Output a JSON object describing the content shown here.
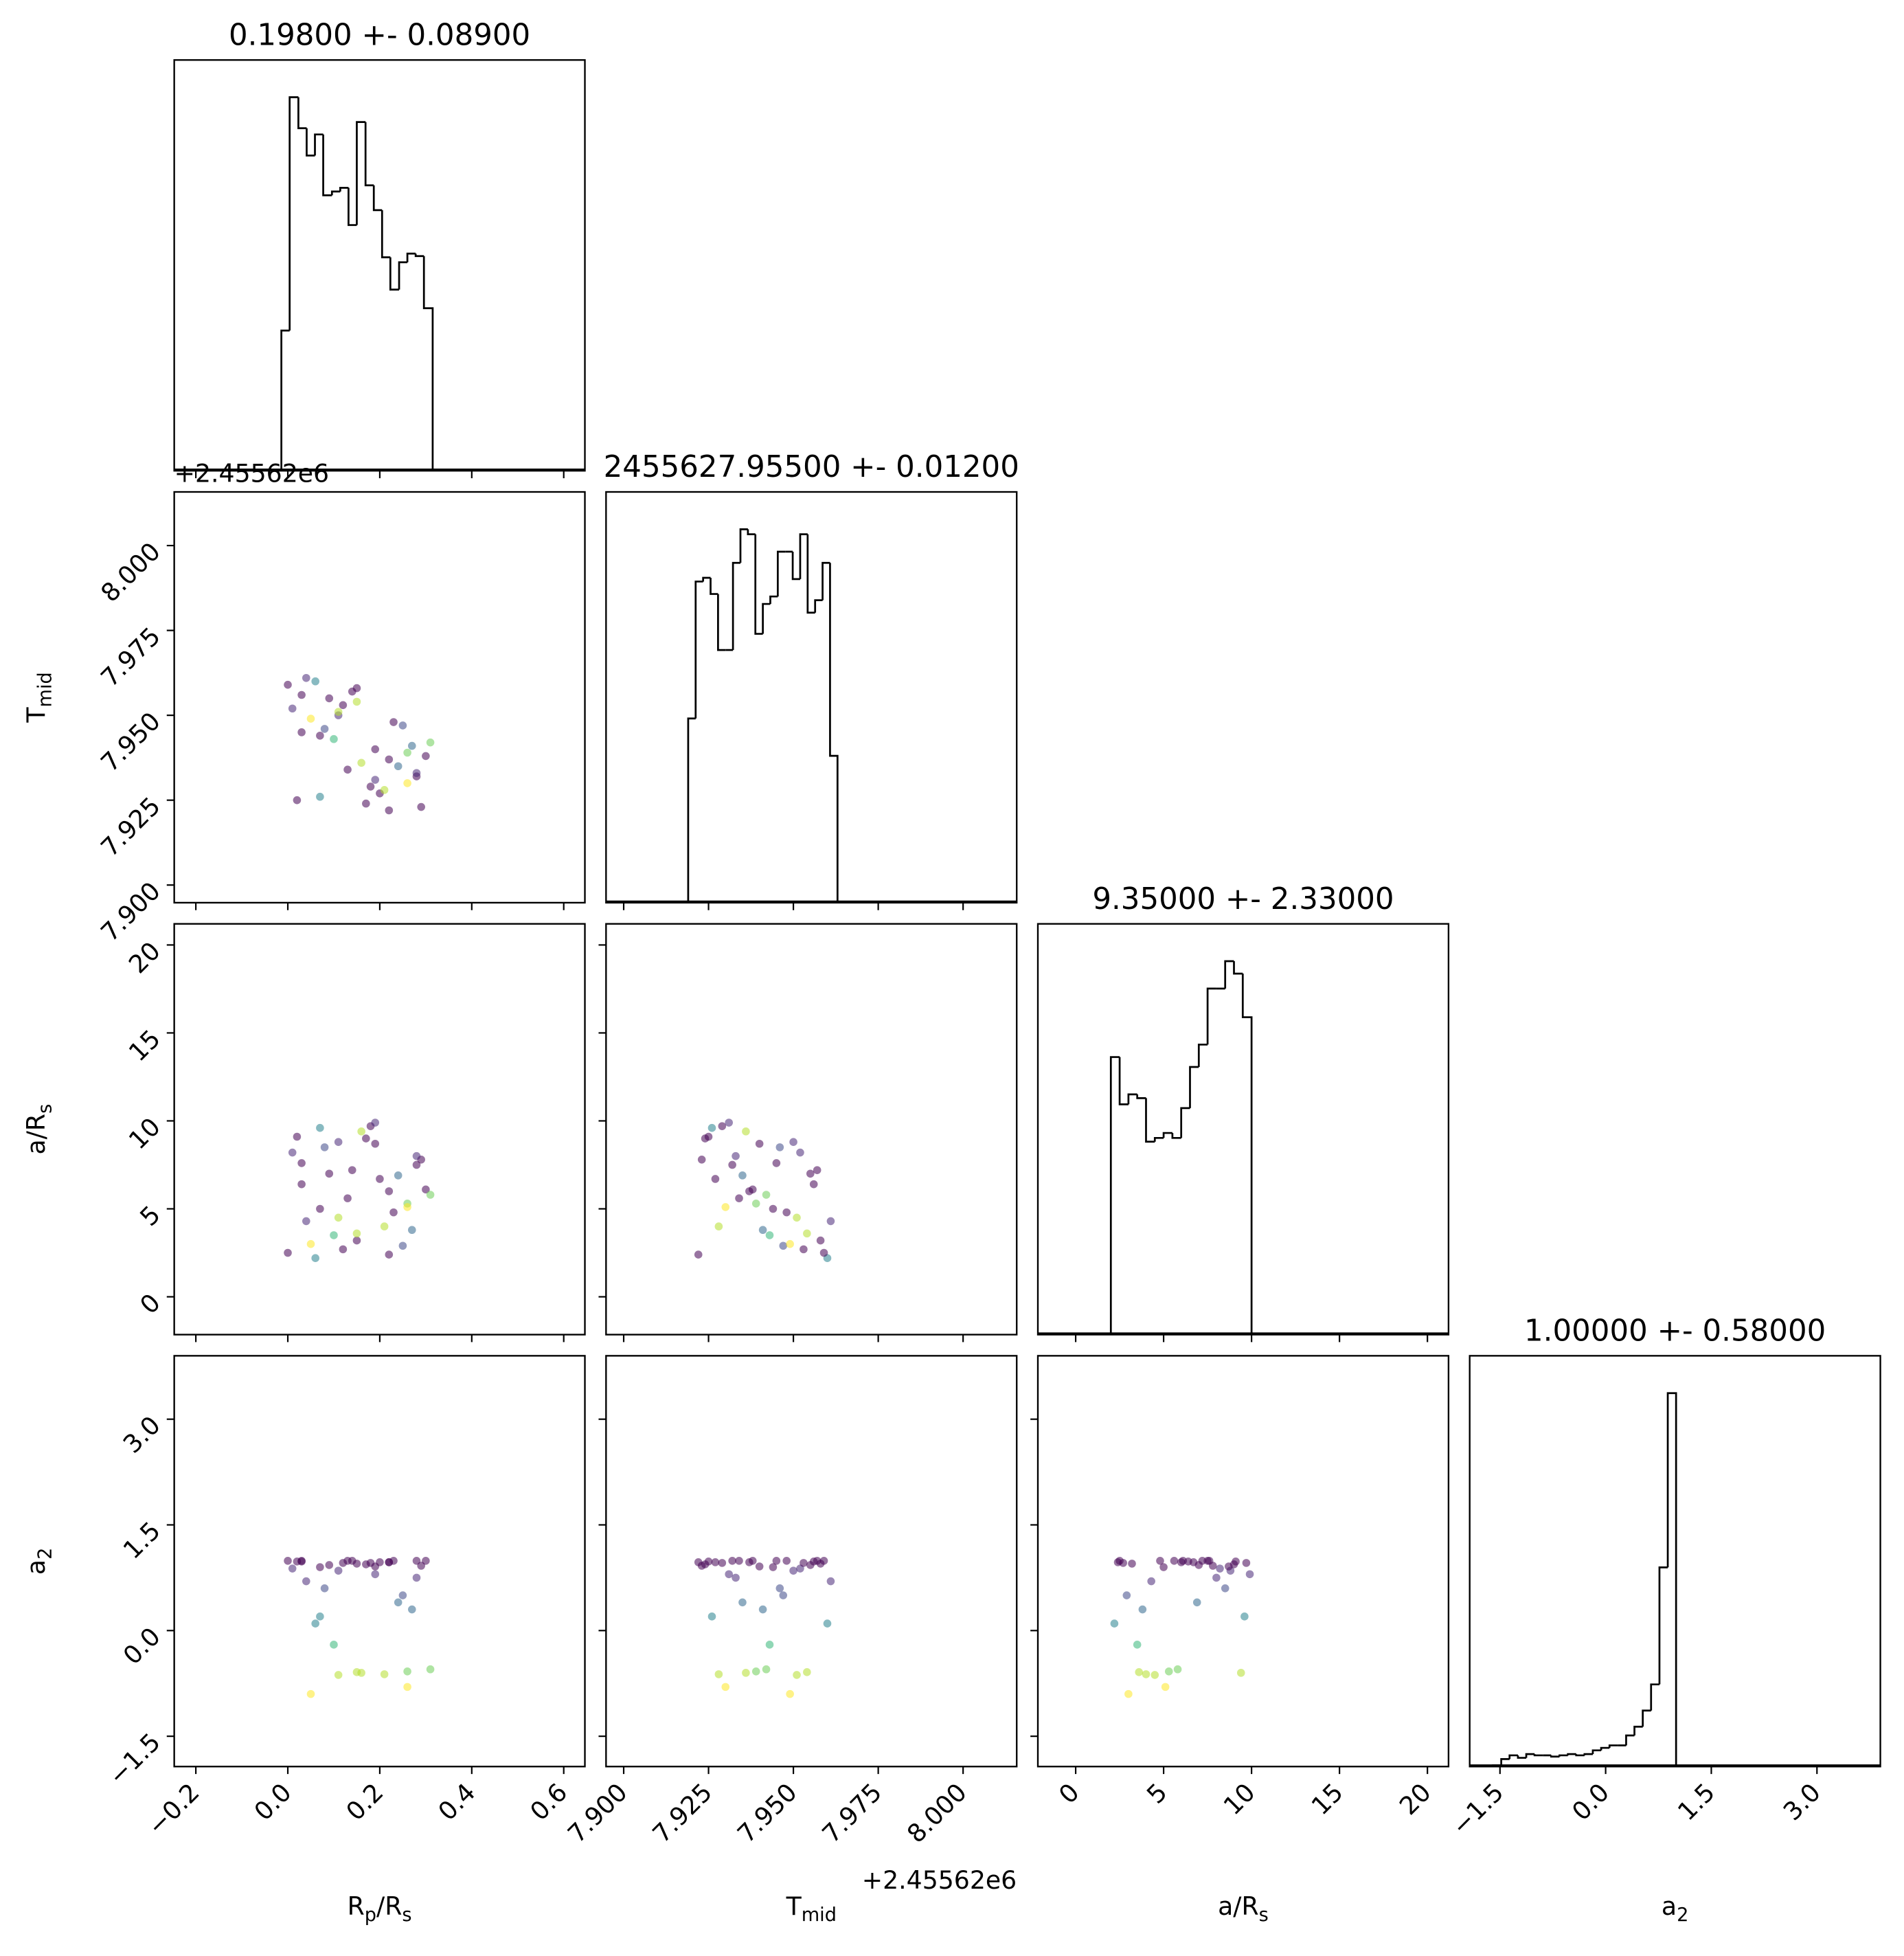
{
  "chart_data": {
    "type": "corner",
    "colormap": "viridis",
    "color_by": 3,
    "params": [
      {
        "label_parts": [
          "R",
          "p",
          "/R",
          "s"
        ],
        "title": "0.19800 +- 0.08900",
        "lim": [
          -0.247,
          0.646
        ],
        "ticks": [
          {
            "value": -0.2,
            "label": "−0.2"
          },
          {
            "value": 0,
            "label": "0.0"
          },
          0.2,
          0.4,
          0.6
        ],
        "hist_bins": [
          -0.014,
          0.004,
          0.023,
          0.041,
          0.059,
          0.077,
          0.096,
          0.114,
          0.132,
          0.15,
          0.169,
          0.187,
          0.205,
          0.223,
          0.242,
          0.26,
          0.278,
          0.296,
          0.315
        ],
        "hist_counts": [
          113,
          301,
          276,
          254,
          271,
          222,
          225,
          228,
          198,
          281,
          230,
          210,
          172,
          146,
          168,
          175,
          173,
          131
        ],
        "hist_ylim": [
          0,
          331
        ],
        "samples": [
          0.02,
          0.15,
          0.28,
          0.07,
          0.22,
          0.11,
          0.3,
          0.04,
          0.18,
          0.25,
          0.09,
          0.13,
          0.27,
          0.01,
          0.2,
          0.06,
          0.16,
          0.23,
          0.29,
          0.1,
          0.03,
          0.19,
          0.26,
          0.12,
          0.08,
          0.21,
          0.14,
          0.24,
          0.05,
          0.17,
          0.31,
          0.0,
          0.28,
          0.11,
          0.22,
          0.07,
          0.15,
          0.03,
          0.26,
          0.19
        ]
      },
      {
        "label_parts": [
          "T",
          "mid"
        ],
        "title": "2455627.95500 +- 0.01200",
        "offset_label": "+2.45562e6",
        "lim": [
          7.8948,
          8.0158
        ],
        "ticks": [
          {
            "value": 7.9,
            "label": "7.900"
          },
          7.925,
          {
            "value": 7.95,
            "label": "7.950"
          },
          7.975,
          {
            "value": 8,
            "label": "8.000"
          }
        ],
        "hist_bins": [
          7.919,
          7.9212,
          7.9234,
          7.9256,
          7.9278,
          7.93,
          7.9322,
          7.9344,
          7.9366,
          7.9388,
          7.941,
          7.9432,
          7.9454,
          7.9476,
          7.9498,
          7.952,
          7.9542,
          7.9564,
          7.9586,
          7.9608,
          7.963
        ],
        "hist_counts": [
          148,
          258,
          261,
          248,
          203,
          203,
          273,
          300,
          296,
          216,
          240,
          246,
          282,
          282,
          260,
          296,
          233,
          243,
          273,
          118
        ],
        "hist_ylim": [
          0,
          330
        ],
        "samples": [
          7.925,
          7.958,
          7.932,
          7.944,
          7.922,
          7.95,
          7.938,
          7.961,
          7.929,
          7.947,
          7.955,
          7.934,
          7.941,
          7.952,
          7.927,
          7.96,
          7.936,
          7.948,
          7.923,
          7.943,
          7.956,
          7.931,
          7.939,
          7.953,
          7.946,
          7.928,
          7.957,
          7.935,
          7.949,
          7.924,
          7.942,
          7.959,
          7.933,
          7.951,
          7.937,
          7.926,
          7.954,
          7.945,
          7.93,
          7.94
        ]
      },
      {
        "label_parts": [
          "a/R",
          "s"
        ],
        "title": "9.35000 +- 2.33000",
        "lim": [
          -2.15,
          21.2
        ],
        "ticks": [
          0,
          5,
          10,
          15,
          20
        ],
        "hist_bins": [
          2,
          2.5,
          3,
          3.5,
          4,
          4.5,
          5,
          5.5,
          6,
          6.5,
          7,
          7.5,
          8,
          8.5,
          9,
          9.5,
          10
        ],
        "hist_counts": [
          223,
          185,
          193,
          190,
          155,
          158,
          162,
          158,
          182,
          215,
          233,
          278,
          278,
          300,
          290,
          255
        ],
        "hist_ylim": [
          0,
          330
        ],
        "samples": [
          9.1,
          3.2,
          7.5,
          5.0,
          2.4,
          8.8,
          6.1,
          4.3,
          9.7,
          2.9,
          7.0,
          5.6,
          3.8,
          8.2,
          6.7,
          2.2,
          9.4,
          4.8,
          7.8,
          3.5,
          6.4,
          9.9,
          5.3,
          2.7,
          8.5,
          4.0,
          7.2,
          6.9,
          3.0,
          9.0,
          5.8,
          2.5,
          8.0,
          4.5,
          6.0,
          9.6,
          3.6,
          7.6,
          5.1,
          8.7
        ]
      },
      {
        "label_parts": [
          "a",
          "2"
        ],
        "title": "1.00000 +- 0.58000",
        "lim": [
          -1.93,
          3.9
        ],
        "ticks": [
          {
            "value": -1.5,
            "label": "−1.5"
          },
          {
            "value": 0,
            "label": "0.0"
          },
          1.5,
          {
            "value": 3,
            "label": "3.0"
          }
        ],
        "hist_bins": [
          -1.6,
          -1.482,
          -1.364,
          -1.245,
          -1.127,
          -1.009,
          -0.891,
          -0.773,
          -0.655,
          -0.536,
          -0.418,
          -0.3,
          -0.182,
          -0.064,
          0.055,
          0.173,
          0.291,
          0.409,
          0.527,
          0.645,
          0.764,
          0.882,
          1.0
        ],
        "hist_counts": [
          1,
          6,
          9,
          7,
          10,
          9,
          9,
          8,
          9,
          10,
          9,
          10,
          13,
          15,
          17,
          17,
          25,
          32,
          45,
          66,
          160,
          300
        ],
        "hist_ylim": [
          0,
          330
        ],
        "samples": [
          0.98,
          0.95,
          0.99,
          0.9,
          0.97,
          0.85,
          0.99,
          0.7,
          0.96,
          0.5,
          0.93,
          0.99,
          0.3,
          0.88,
          0.97,
          0.1,
          -0.6,
          0.99,
          0.92,
          -0.2,
          0.98,
          0.8,
          -0.58,
          0.96,
          0.6,
          -0.62,
          0.99,
          0.4,
          -0.9,
          0.94,
          -0.55,
          0.99,
          0.75,
          -0.63,
          0.97,
          0.2,
          -0.59,
          0.99,
          -0.8,
          0.91
        ]
      }
    ]
  }
}
